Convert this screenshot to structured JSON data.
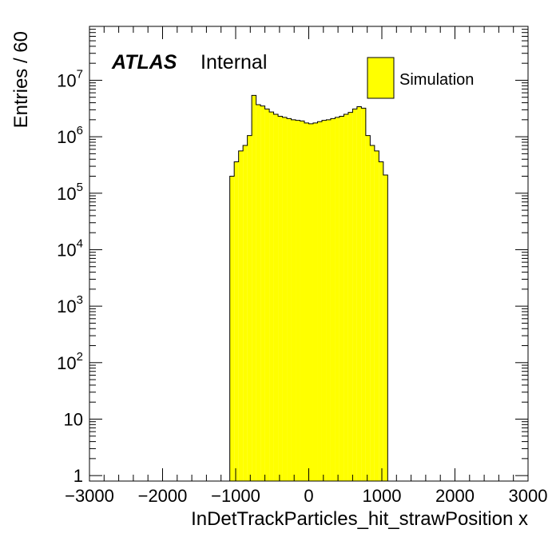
{
  "chart_data": {
    "type": "bar",
    "xlabel": "InDetTrackParticles_hit_strawPosition x",
    "ylabel": "Entries / 60",
    "bin_width": 60,
    "xlim": [
      -3000,
      3000
    ],
    "ylim": [
      0.8,
      90000000
    ],
    "log_y": true,
    "grid": false,
    "legend_position": "top-right",
    "fill_color": "#ffff00",
    "line_color": "#000000",
    "bin_low_edges": [
      -1080,
      -1020,
      -960,
      -900,
      -840,
      -780,
      -720,
      -660,
      -600,
      -540,
      -480,
      -420,
      -360,
      -300,
      -240,
      -180,
      -120,
      -60,
      0,
      60,
      120,
      180,
      240,
      300,
      360,
      420,
      480,
      540,
      600,
      660,
      720,
      780,
      840,
      900,
      960,
      1020
    ],
    "series": [
      {
        "name": "Simulation",
        "values": [
          200000,
          360000,
          560000,
          700000,
          1050000,
          5400000,
          3700000,
          3500000,
          3100000,
          2750000,
          2500000,
          2300000,
          2200000,
          2100000,
          2000000,
          1950000,
          1900000,
          1750000,
          1700000,
          1750000,
          1850000,
          1950000,
          2000000,
          2100000,
          2200000,
          2300000,
          2500000,
          2700000,
          3100000,
          3400000,
          3200000,
          1050000,
          700000,
          560000,
          360000,
          210000
        ]
      }
    ],
    "x_ticks": [
      "−3000",
      "−2000",
      "−1000",
      "0",
      "1000",
      "2000",
      "3000"
    ],
    "y_ticks": [
      {
        "base": "1",
        "exp": ""
      },
      {
        "base": "10",
        "exp": ""
      },
      {
        "base": "10",
        "exp": "2"
      },
      {
        "base": "10",
        "exp": "3"
      },
      {
        "base": "10",
        "exp": "4"
      },
      {
        "base": "10",
        "exp": "5"
      },
      {
        "base": "10",
        "exp": "6"
      },
      {
        "base": "10",
        "exp": "7"
      }
    ],
    "atlas_label": "ATLAS",
    "atlas_status": "Internal"
  }
}
